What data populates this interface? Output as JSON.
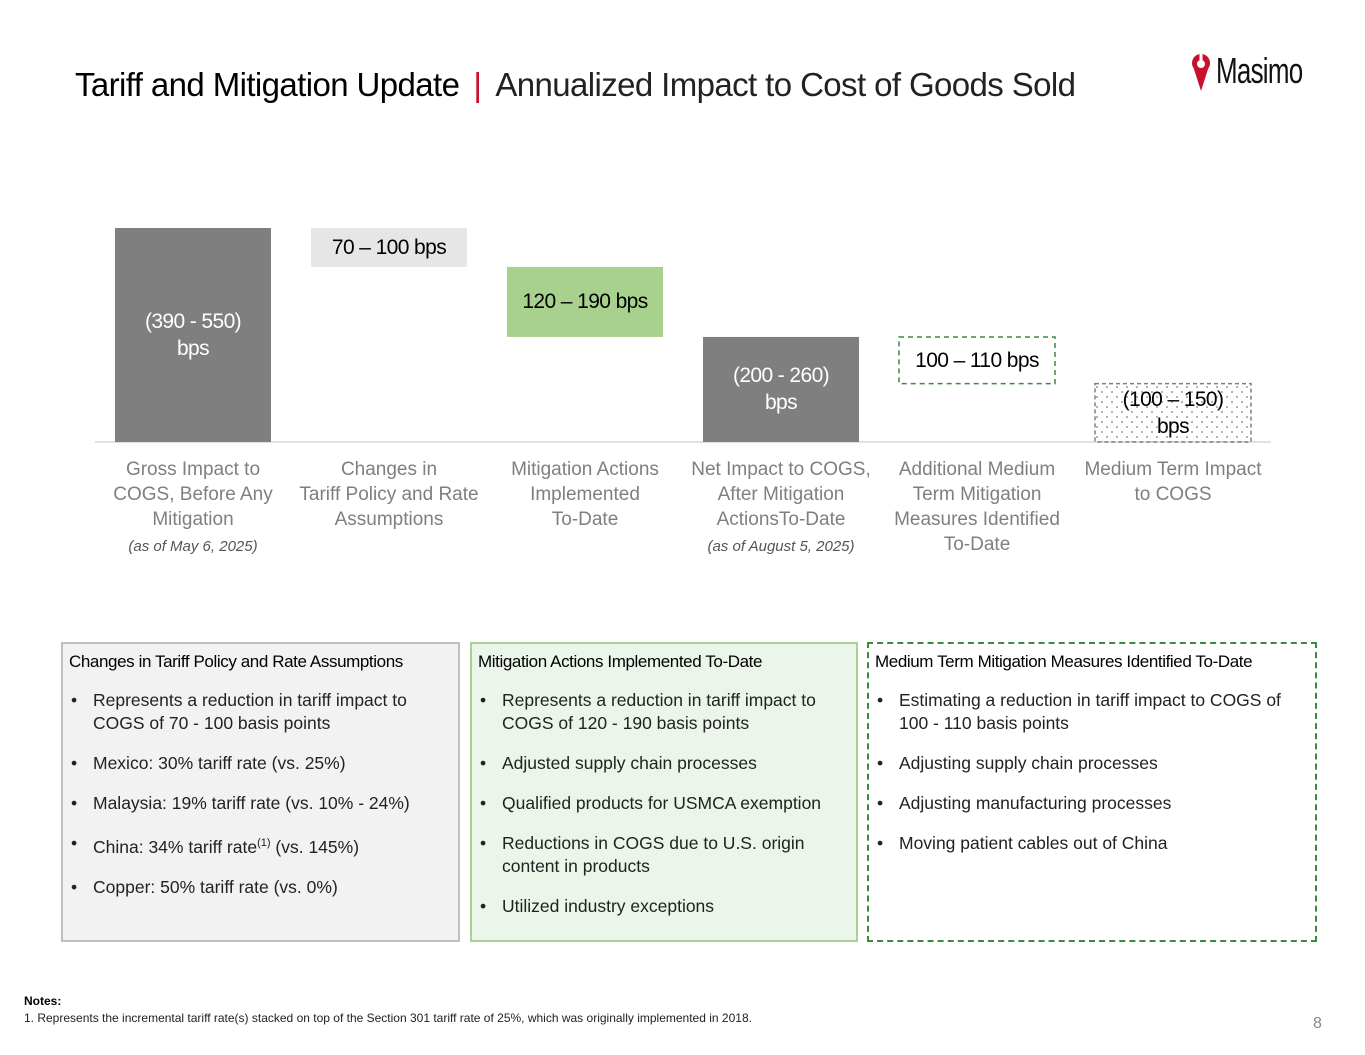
{
  "title": {
    "main": "Tariff and Mitigation Update",
    "separator": "|",
    "subtitle": "Annualized Impact to Cost of Goods Sold"
  },
  "logo": {
    "text": "Masimo"
  },
  "colors": {
    "accent": "#c8102e",
    "bar_dark": "#7f7f7f",
    "bar_light_gray": "#e7e6e6",
    "bar_green": "#a9d18e",
    "dashed_green": "#3c8a3c",
    "axis": "#d9d9d9"
  },
  "chart_data": {
    "type": "bar",
    "subtype": "waterfall",
    "units": "bps",
    "ylim": [
      0,
      550
    ],
    "categories": [
      "Gross Impact to COGS, Before Any Mitigation",
      "Changes in Tariff Policy and Rate Assumptions",
      "Mitigation Actions Implemented To-Date",
      "Net Impact to COGS, After Mitigation ActionsTo-Date",
      "Additional Medium Term Mitigation Measures Identified To-Date",
      "Medium Term Impact to COGS"
    ],
    "bars": [
      {
        "label_lines": [
          "(390 - 550)",
          "bps"
        ],
        "category_lines": [
          "Gross Impact to",
          "COGS, Before Any",
          "Mitigation"
        ],
        "note": "(as of May 6, 2025)",
        "base": 0,
        "top": 550,
        "style": "total"
      },
      {
        "label_lines": [
          "70 – 100 bps"
        ],
        "category_lines": [
          "Changes in",
          "Tariff Policy and Rate",
          "Assumptions"
        ],
        "note": "",
        "base": 450,
        "top": 550,
        "style": "reduction-gray"
      },
      {
        "label_lines": [
          "120 – 190 bps"
        ],
        "category_lines": [
          "Mitigation Actions",
          "Implemented",
          "To-Date"
        ],
        "note": "",
        "base": 270,
        "top": 450,
        "style": "reduction-green"
      },
      {
        "label_lines": [
          "(200 - 260)",
          "bps"
        ],
        "category_lines": [
          "Net Impact to COGS,",
          "After Mitigation",
          "ActionsTo-Date"
        ],
        "note": "(as of August 5, 2025)",
        "base": 0,
        "top": 270,
        "style": "total"
      },
      {
        "label_lines": [
          "100 – 110 bps"
        ],
        "category_lines": [
          "Additional Medium",
          "Term Mitigation",
          "Measures Identified",
          "To-Date"
        ],
        "note": "",
        "base": 150,
        "top": 270,
        "style": "reduction-dashed"
      },
      {
        "label_lines": [
          "(100 – 150)",
          "bps"
        ],
        "category_lines": [
          "Medium Term Impact",
          "to COGS"
        ],
        "note": "",
        "base": 0,
        "top": 150,
        "style": "total-dotted"
      }
    ]
  },
  "boxes": [
    {
      "title": "Changes in Tariff Policy and Rate Assumptions",
      "bullets": [
        "Represents a reduction in tariff impact to COGS of 70 - 100 basis points",
        "Mexico:  30% tariff rate (vs. 25%)",
        "Malaysia: 19% tariff rate (vs. 10% - 24%)",
        {
          "before": "China:  34% tariff rate",
          "sup": "(1)",
          "after": " (vs. 145%)"
        },
        "Copper:  50% tariff rate (vs. 0%)"
      ]
    },
    {
      "title": "Mitigation Actions Implemented To-Date",
      "bullets": [
        "Represents a reduction in tariff impact to COGS of 120 - 190 basis points",
        "Adjusted supply chain processes",
        "Qualified products for USMCA exemption",
        "Reductions in COGS due to U.S. origin content in products",
        "Utilized industry exceptions"
      ]
    },
    {
      "title": "Medium Term Mitigation Measures Identified To-Date",
      "bullets": [
        "Estimating a reduction in tariff impact to COGS of 100 - 110 basis points",
        "Adjusting supply chain processes",
        "Adjusting manufacturing processes",
        "Moving patient cables out of China"
      ]
    }
  ],
  "notes": {
    "heading": "Notes:",
    "line": "1. Represents the incremental tariff rate(s) stacked on top of the Section 301 tariff rate of 25%, which was originally implemented in 2018."
  },
  "page_number": "8"
}
